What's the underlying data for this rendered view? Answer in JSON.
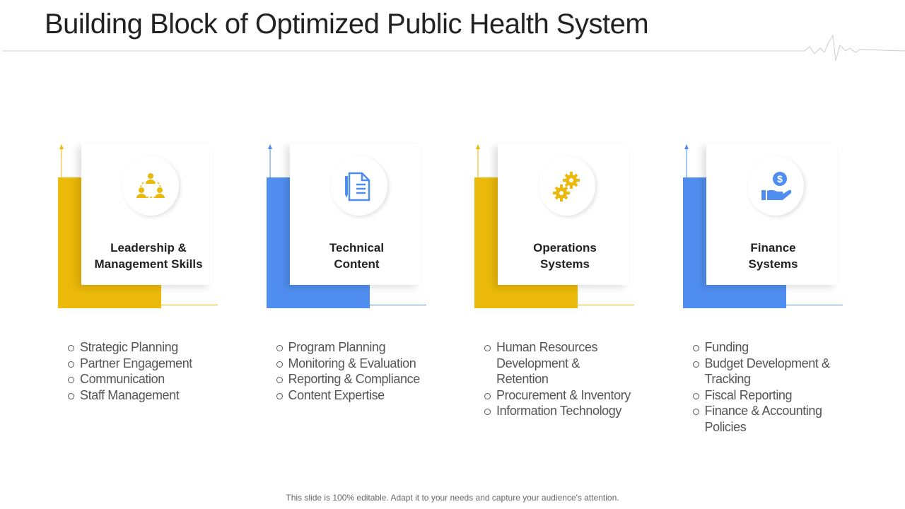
{
  "header": {
    "title": "Building Block of Optimized Public Health System"
  },
  "blocks": [
    {
      "heading": [
        "Leadership &",
        "Management Skills"
      ],
      "items": [
        "Strategic Planning",
        "Partner Engagement",
        "Communication",
        "Staff Management"
      ]
    },
    {
      "heading": [
        "Technical",
        "Content"
      ],
      "items": [
        "Program Planning",
        "Monitoring & Evaluation",
        "Reporting & Compliance",
        "Content Expertise"
      ]
    },
    {
      "heading": [
        "Operations",
        "Systems"
      ],
      "items": [
        "Human Resources Development & Retention",
        "Procurement & Inventory",
        "Information Technology"
      ]
    },
    {
      "heading": [
        "Finance",
        "Systems"
      ],
      "items": [
        "Funding",
        "Budget Development & Tracking",
        "Fiscal Reporting",
        "Finance & Accounting Policies"
      ]
    }
  ],
  "footer": {
    "note": "This slide is 100% editable. Adapt it to your needs and capture your audience's attention."
  }
}
